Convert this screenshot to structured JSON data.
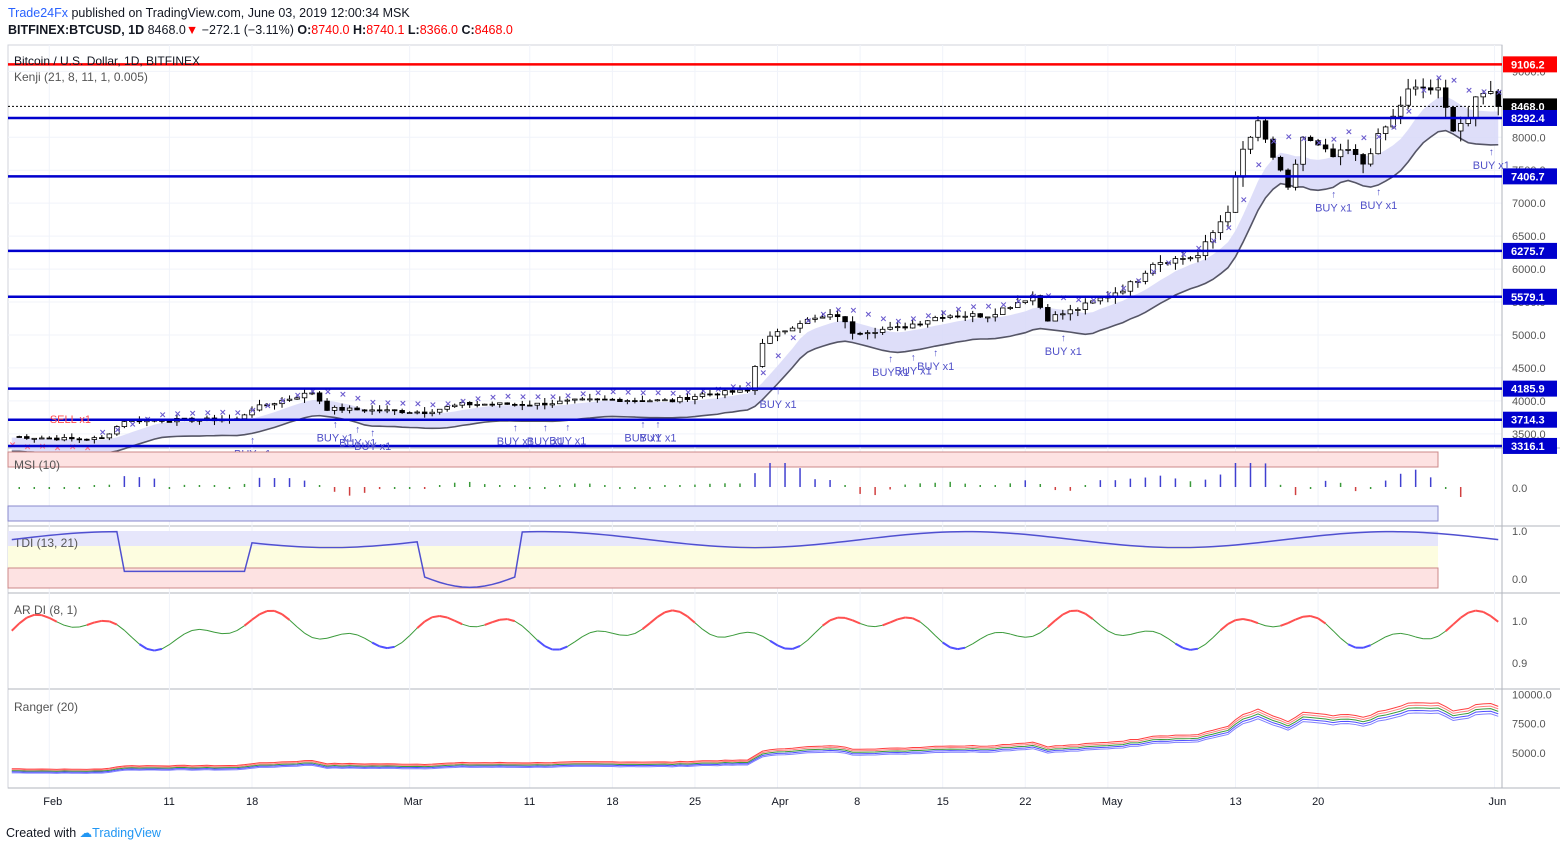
{
  "header": {
    "publisher": "Trade24Fx",
    "published_text": "published on TradingView.com, June 03, 2019 12:00:34 MSK",
    "symbol": "BITFINEX:BTCUSD, 1D",
    "last": "8468.0",
    "change": "−272.1 (−3.11%)",
    "o_label": "O:",
    "o": "8740.0",
    "h_label": "H:",
    "h": "8740.1",
    "l_label": "L:",
    "l": "8366.0",
    "c_label": "C:",
    "c": "8468.0"
  },
  "footer": {
    "created_with": "Created with",
    "brand": "TradingView"
  },
  "colors": {
    "up": "#ffffff",
    "down": "#000000",
    "level_line": "#0000cd",
    "resistance_line": "#ff0000",
    "sar": "#6a5acd",
    "sell_sar": "#ff6b81",
    "band_fill": "#d8d8f8",
    "band_line": "#555566"
  },
  "chart_data": [
    {
      "type": "candlestick",
      "title": "Bitcoin / U.S. Dollar, 1D, BITFINEX",
      "indicator": "Kenji (21, 8, 11, 1, 0.005)",
      "x_ticks": [
        "Feb",
        "11",
        "18",
        "Mar",
        "11",
        "18",
        "25",
        "Apr",
        "8",
        "15",
        "22",
        "May",
        "13",
        "20",
        "Jun"
      ],
      "y_ticks": [
        "9000.0",
        "8000.0",
        "7500.0",
        "7000.0",
        "6500.0",
        "6000.0",
        "5500.0",
        "5000.0",
        "4500.0",
        "4000.0",
        "3500.0"
      ],
      "ylim": [
        3300,
        9400
      ],
      "price_labels": [
        "9106.2",
        "8468.0",
        "8292.4",
        "7406.7",
        "6275.7",
        "5579.1",
        "4185.9",
        "3714.3",
        "3316.1"
      ],
      "levels": [
        9106.2,
        8292.4,
        7406.7,
        6275.7,
        5579.1,
        4185.9,
        3714.3,
        3316.1
      ],
      "current_price": 8468.0,
      "signals": [
        {
          "label": "SELL x1",
          "day": 8,
          "side": "sell"
        },
        {
          "label": "BUY x1",
          "day": 32,
          "side": "buy"
        },
        {
          "label": "BUY x1",
          "day": 43,
          "side": "buy"
        },
        {
          "label": "BUY x1",
          "day": 46,
          "side": "buy"
        },
        {
          "label": "BUY x1",
          "day": 48,
          "side": "buy"
        },
        {
          "label": "BUY x1",
          "day": 67,
          "side": "buy"
        },
        {
          "label": "BUY x1",
          "day": 71,
          "side": "buy"
        },
        {
          "label": "BUY x1",
          "day": 74,
          "side": "buy"
        },
        {
          "label": "BUY x1",
          "day": 84,
          "side": "buy"
        },
        {
          "label": "BUY x1",
          "day": 86,
          "side": "buy"
        },
        {
          "label": "BUY x1",
          "day": 102,
          "side": "buy"
        },
        {
          "label": "BUY x1",
          "day": 117,
          "side": "buy"
        },
        {
          "label": "BUY x1",
          "day": 120,
          "side": "buy"
        },
        {
          "label": "BUY x1",
          "day": 123,
          "side": "buy"
        },
        {
          "label": "BUY x1",
          "day": 140,
          "side": "buy"
        },
        {
          "label": "BUY x1",
          "day": 176,
          "side": "buy"
        },
        {
          "label": "BUY x1",
          "day": 182,
          "side": "buy"
        },
        {
          "label": "BUY x1",
          "day": 197,
          "side": "buy"
        }
      ],
      "close_anchors": [
        [
          0,
          3460
        ],
        [
          8,
          3420
        ],
        [
          12,
          3430
        ],
        [
          15,
          3700
        ],
        [
          30,
          3720
        ],
        [
          32,
          3880
        ],
        [
          40,
          4130
        ],
        [
          42,
          3880
        ],
        [
          50,
          3850
        ],
        [
          55,
          3830
        ],
        [
          60,
          3950
        ],
        [
          70,
          3950
        ],
        [
          75,
          4000
        ],
        [
          80,
          4020
        ],
        [
          88,
          4000
        ],
        [
          92,
          4100
        ],
        [
          98,
          4150
        ],
        [
          100,
          4900
        ],
        [
          105,
          5200
        ],
        [
          110,
          5300
        ],
        [
          112,
          5050
        ],
        [
          118,
          5100
        ],
        [
          124,
          5300
        ],
        [
          130,
          5300
        ],
        [
          134,
          5500
        ],
        [
          136,
          5600
        ],
        [
          138,
          5250
        ],
        [
          142,
          5400
        ],
        [
          148,
          5700
        ],
        [
          150,
          5850
        ],
        [
          152,
          6100
        ],
        [
          158,
          6200
        ],
        [
          162,
          6900
        ],
        [
          164,
          7800
        ],
        [
          166,
          8200
        ],
        [
          168,
          7700
        ],
        [
          170,
          7200
        ],
        [
          172,
          8000
        ],
        [
          176,
          7700
        ],
        [
          178,
          7800
        ],
        [
          180,
          7600
        ],
        [
          182,
          8000
        ],
        [
          184,
          8300
        ],
        [
          186,
          8700
        ],
        [
          188,
          8750
        ],
        [
          190,
          8700
        ],
        [
          192,
          8150
        ],
        [
          194,
          8300
        ],
        [
          195,
          8550
        ],
        [
          197,
          8740
        ],
        [
          198,
          8468
        ]
      ]
    },
    {
      "type": "bar",
      "title": "MSI (10)",
      "y_ticks": [
        "0.0"
      ],
      "ylim": [
        -1,
        1
      ]
    },
    {
      "type": "line",
      "title": "TDI (13, 21)",
      "y_ticks": [
        "1.0",
        "0.0"
      ],
      "ylim": [
        -0.1,
        1.05
      ]
    },
    {
      "type": "line",
      "title": "AR DI (8, 1)",
      "y_ticks": [
        "1.0",
        "0.9"
      ],
      "ylim": [
        0.84,
        1.06
      ]
    },
    {
      "type": "line",
      "title": "Ranger (20)",
      "y_ticks": [
        "10000.0",
        "7500.0",
        "5000.0"
      ],
      "ylim": [
        2200,
        10200
      ]
    }
  ]
}
